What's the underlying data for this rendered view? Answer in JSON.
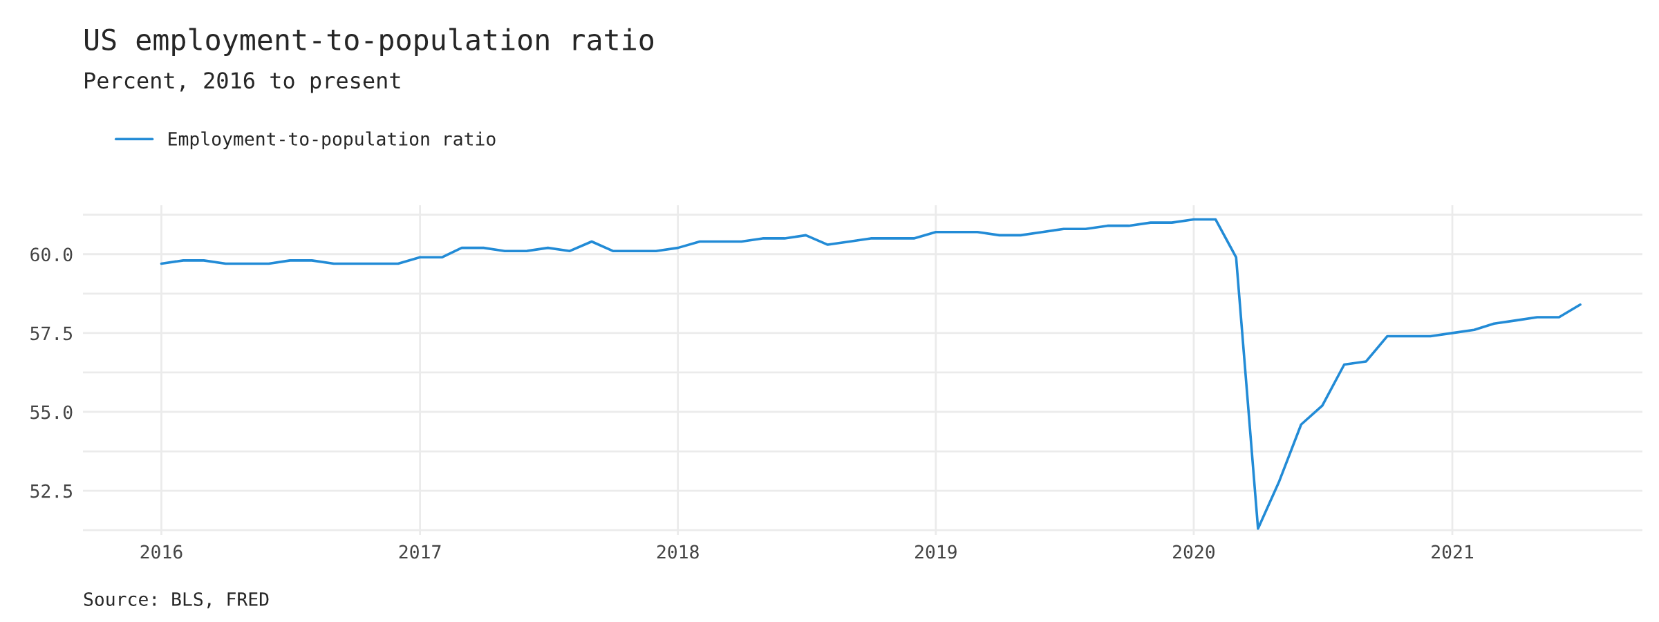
{
  "chart_data": {
    "type": "line",
    "title": "US employment-to-population ratio",
    "subtitle": "Percent, 2016 to present",
    "x": [
      "2016-01",
      "2016-02",
      "2016-03",
      "2016-04",
      "2016-05",
      "2016-06",
      "2016-07",
      "2016-08",
      "2016-09",
      "2016-10",
      "2016-11",
      "2016-12",
      "2017-01",
      "2017-02",
      "2017-03",
      "2017-04",
      "2017-05",
      "2017-06",
      "2017-07",
      "2017-08",
      "2017-09",
      "2017-10",
      "2017-11",
      "2017-12",
      "2018-01",
      "2018-02",
      "2018-03",
      "2018-04",
      "2018-05",
      "2018-06",
      "2018-07",
      "2018-08",
      "2018-09",
      "2018-10",
      "2018-11",
      "2018-12",
      "2019-01",
      "2019-02",
      "2019-03",
      "2019-04",
      "2019-05",
      "2019-06",
      "2019-07",
      "2019-08",
      "2019-09",
      "2019-10",
      "2019-11",
      "2019-12",
      "2020-01",
      "2020-02",
      "2020-03",
      "2020-04",
      "2020-05",
      "2020-06",
      "2020-07",
      "2020-08",
      "2020-09",
      "2020-10",
      "2020-11",
      "2020-12",
      "2021-01",
      "2021-02",
      "2021-03",
      "2021-04",
      "2021-05",
      "2021-06",
      "2021-07"
    ],
    "series": [
      {
        "name": "Employment-to-population ratio",
        "color": "#228bd6",
        "values": [
          59.7,
          59.8,
          59.8,
          59.7,
          59.7,
          59.7,
          59.8,
          59.8,
          59.7,
          59.7,
          59.7,
          59.7,
          59.9,
          59.9,
          60.2,
          60.2,
          60.1,
          60.1,
          60.2,
          60.1,
          60.4,
          60.1,
          60.1,
          60.1,
          60.2,
          60.4,
          60.4,
          60.4,
          60.5,
          60.5,
          60.6,
          60.3,
          60.4,
          60.5,
          60.5,
          60.5,
          60.7,
          60.7,
          60.7,
          60.6,
          60.6,
          60.7,
          60.8,
          60.8,
          60.9,
          60.9,
          61.0,
          61.0,
          61.1,
          61.1,
          59.9,
          51.3,
          52.8,
          54.6,
          55.2,
          56.5,
          56.6,
          57.4,
          57.4,
          57.4,
          57.5,
          57.6,
          57.8,
          57.9,
          58.0,
          58.0,
          58.4
        ]
      }
    ],
    "xlim": [
      "2015-09-12",
      "2021-09-27"
    ],
    "xticks": [
      {
        "value": "2016-01-01",
        "label": "2016"
      },
      {
        "value": "2017-01-01",
        "label": "2017"
      },
      {
        "value": "2018-01-01",
        "label": "2018"
      },
      {
        "value": "2019-01-01",
        "label": "2019"
      },
      {
        "value": "2020-01-01",
        "label": "2020"
      },
      {
        "value": "2021-01-01",
        "label": "2021"
      }
    ],
    "ylim": [
      51.1,
      61.55
    ],
    "yticks": [
      {
        "value": 51.25,
        "label": null
      },
      {
        "value": 52.5,
        "label": "52.5"
      },
      {
        "value": 53.75,
        "label": null
      },
      {
        "value": 55,
        "label": "55.0"
      },
      {
        "value": 56.25,
        "label": null
      },
      {
        "value": 57.5,
        "label": "57.5"
      },
      {
        "value": 58.75,
        "label": null
      },
      {
        "value": 60,
        "label": "60.0"
      },
      {
        "value": 61.25,
        "label": null
      }
    ],
    "grid": true,
    "legend": "top left",
    "line_style": "solid",
    "marker": "none",
    "annotations": [
      "Source: BLS, FRED"
    ]
  }
}
